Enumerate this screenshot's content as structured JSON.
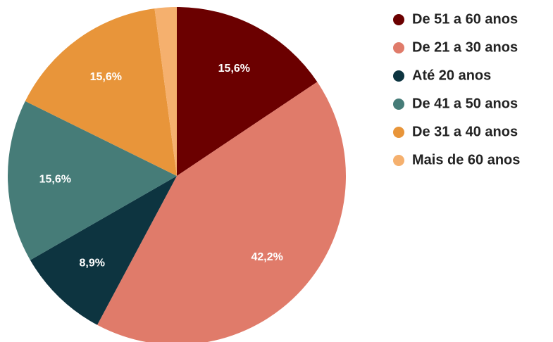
{
  "chart_data": {
    "type": "pie",
    "categories": [
      "De 51 a 60 anos",
      "De 21 a 30 anos",
      "Até 20 anos",
      "De 41 a 50 anos",
      "De 31 a 40 anos",
      "Mais de 60 anos"
    ],
    "values": [
      15.6,
      42.2,
      8.9,
      15.6,
      15.6,
      2.1
    ],
    "value_labels": [
      "15,6%",
      "42,2%",
      "8,9%",
      "15,6%",
      "15,6%",
      null
    ],
    "colors": [
      "#6b0000",
      "#e07b6a",
      "#0d3440",
      "#467c78",
      "#e8953a",
      "#f5b06e"
    ],
    "legend": "right"
  }
}
